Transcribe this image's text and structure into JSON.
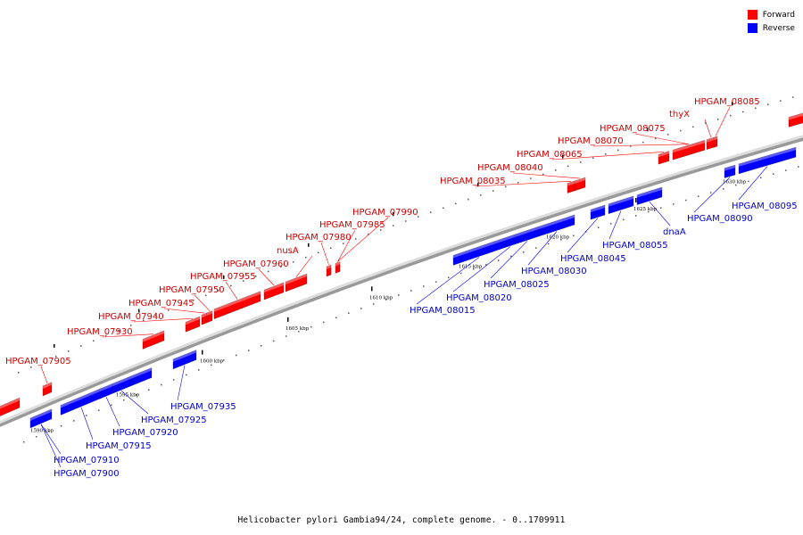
{
  "caption": "Helicobacter pylori Gambia94/24, complete genome. - 0..1709911",
  "legend": [
    {
      "label": "Forward",
      "color": "#ff0000"
    },
    {
      "label": "Reverse",
      "color": "#0000ff"
    }
  ],
  "colors": {
    "forward": "#ff0000",
    "reverse": "#0000ff",
    "forward_label": "#cc0000",
    "reverse_label": "#0000cc",
    "backbone": "#999999"
  },
  "tick_labels": [
    "1590 kbp",
    "1595 kbp",
    "1600 kbp",
    "1605 kbp",
    "1610 kbp",
    "1615 kbp",
    "1620 kbp",
    "1625 kbp",
    "1630 kbp"
  ],
  "forward_genes": [
    "HPGAM_07905",
    "HPGAM_07930",
    "HPGAM_07940",
    "HPGAM_07945",
    "HPGAM_07950",
    "HPGAM_07955",
    "HPGAM_07960",
    "nusA",
    "HPGAM_07980",
    "HPGAM_07985",
    "HPGAM_07990",
    "HPGAM_08035",
    "HPGAM_08040",
    "HPGAM_08065",
    "HPGAM_08070",
    "HPGAM_08075",
    "thyX",
    "HPGAM_08085"
  ],
  "reverse_genes": [
    "HPGAM_07900",
    "HPGAM_07910",
    "HPGAM_07915",
    "HPGAM_07920",
    "HPGAM_07925",
    "HPGAM_07935",
    "HPGAM_08015",
    "HPGAM_08020",
    "HPGAM_08025",
    "HPGAM_08030",
    "HPGAM_08045",
    "HPGAM_08055",
    "dnaA",
    "HPGAM_08090",
    "HPGAM_08095"
  ]
}
